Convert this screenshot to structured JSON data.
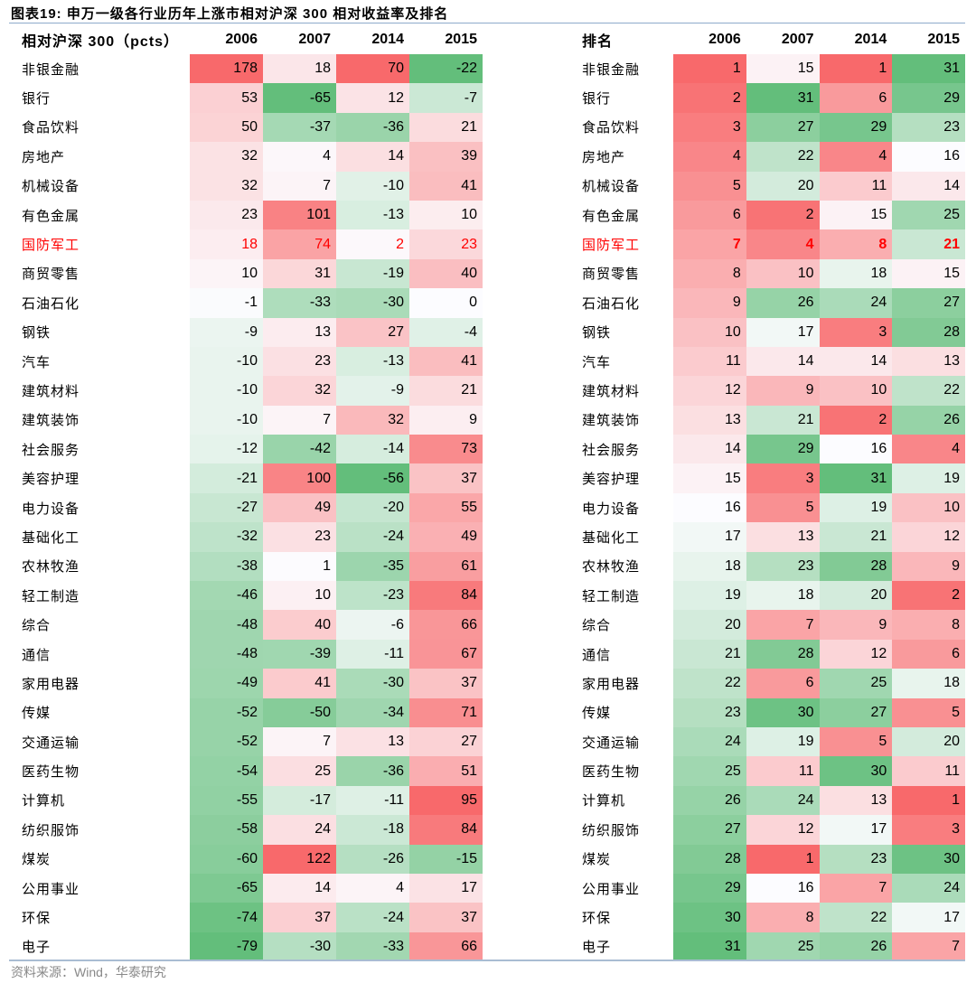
{
  "title": "图表19:  申万一级各行业历年上涨市相对沪深 300 相对收益率及排名",
  "source": "资料来源：Wind，华泰研究",
  "colors": {
    "red": "#f8696b",
    "green": "#63be7b",
    "white": "#fcfcff",
    "highlight": "#ff0000"
  },
  "highlight_row": "国防军工",
  "left": {
    "header": "相对沪深 300（pcts）",
    "years": [
      "2006",
      "2007",
      "2014",
      "2015"
    ],
    "rows": [
      [
        "非银金融",
        178,
        18,
        70,
        -22
      ],
      [
        "银行",
        53,
        -65,
        12,
        -7
      ],
      [
        "食品饮料",
        50,
        -37,
        -36,
        21
      ],
      [
        "房地产",
        32,
        4,
        14,
        39
      ],
      [
        "机械设备",
        32,
        7,
        -10,
        41
      ],
      [
        "有色金属",
        23,
        101,
        -13,
        10
      ],
      [
        "国防军工",
        18,
        74,
        2,
        23
      ],
      [
        "商贸零售",
        10,
        31,
        -19,
        40
      ],
      [
        "石油石化",
        -1,
        -33,
        -30,
        0
      ],
      [
        "钢铁",
        -9,
        13,
        27,
        -4
      ],
      [
        "汽车",
        -10,
        23,
        -13,
        41
      ],
      [
        "建筑材料",
        -10,
        32,
        -9,
        21
      ],
      [
        "建筑装饰",
        -10,
        7,
        32,
        9
      ],
      [
        "社会服务",
        -12,
        -42,
        -14,
        73
      ],
      [
        "美容护理",
        -21,
        100,
        -56,
        37
      ],
      [
        "电力设备",
        -27,
        49,
        -20,
        55
      ],
      [
        "基础化工",
        -32,
        23,
        -24,
        49
      ],
      [
        "农林牧渔",
        -38,
        1,
        -35,
        61
      ],
      [
        "轻工制造",
        -46,
        10,
        -23,
        84
      ],
      [
        "综合",
        -48,
        40,
        -6,
        66
      ],
      [
        "通信",
        -48,
        -39,
        -11,
        67
      ],
      [
        "家用电器",
        -49,
        41,
        -30,
        37
      ],
      [
        "传媒",
        -52,
        -50,
        -34,
        71
      ],
      [
        "交通运输",
        -52,
        7,
        13,
        27
      ],
      [
        "医药生物",
        -54,
        25,
        -36,
        51
      ],
      [
        "计算机",
        -55,
        -17,
        -11,
        95
      ],
      [
        "纺织服饰",
        -58,
        24,
        -18,
        84
      ],
      [
        "煤炭",
        -60,
        122,
        -26,
        -15
      ],
      [
        "公用事业",
        -65,
        14,
        4,
        17
      ],
      [
        "环保",
        -74,
        37,
        -24,
        37
      ],
      [
        "电子",
        -79,
        -30,
        -33,
        66
      ]
    ]
  },
  "right": {
    "header": "排名",
    "years": [
      "2006",
      "2007",
      "2014",
      "2015"
    ],
    "rows": [
      [
        "非银金融",
        1,
        15,
        1,
        31
      ],
      [
        "银行",
        2,
        31,
        6,
        29
      ],
      [
        "食品饮料",
        3,
        27,
        29,
        23
      ],
      [
        "房地产",
        4,
        22,
        4,
        16
      ],
      [
        "机械设备",
        5,
        20,
        11,
        14
      ],
      [
        "有色金属",
        6,
        2,
        15,
        25
      ],
      [
        "国防军工",
        7,
        4,
        8,
        21
      ],
      [
        "商贸零售",
        8,
        10,
        18,
        15
      ],
      [
        "石油石化",
        9,
        26,
        24,
        27
      ],
      [
        "钢铁",
        10,
        17,
        3,
        28
      ],
      [
        "汽车",
        11,
        14,
        14,
        13
      ],
      [
        "建筑材料",
        12,
        9,
        10,
        22
      ],
      [
        "建筑装饰",
        13,
        21,
        2,
        26
      ],
      [
        "社会服务",
        14,
        29,
        16,
        4
      ],
      [
        "美容护理",
        15,
        3,
        31,
        19
      ],
      [
        "电力设备",
        16,
        5,
        19,
        10
      ],
      [
        "基础化工",
        17,
        13,
        21,
        12
      ],
      [
        "农林牧渔",
        18,
        23,
        28,
        9
      ],
      [
        "轻工制造",
        19,
        18,
        20,
        2
      ],
      [
        "综合",
        20,
        7,
        9,
        8
      ],
      [
        "通信",
        21,
        28,
        12,
        6
      ],
      [
        "家用电器",
        22,
        6,
        25,
        18
      ],
      [
        "传媒",
        23,
        30,
        27,
        5
      ],
      [
        "交通运输",
        24,
        19,
        5,
        20
      ],
      [
        "医药生物",
        25,
        11,
        30,
        11
      ],
      [
        "计算机",
        26,
        24,
        13,
        1
      ],
      [
        "纺织服饰",
        27,
        12,
        17,
        3
      ],
      [
        "煤炭",
        28,
        1,
        23,
        30
      ],
      [
        "公用事业",
        29,
        16,
        7,
        24
      ],
      [
        "环保",
        30,
        8,
        22,
        17
      ],
      [
        "电子",
        31,
        25,
        26,
        7
      ]
    ]
  }
}
